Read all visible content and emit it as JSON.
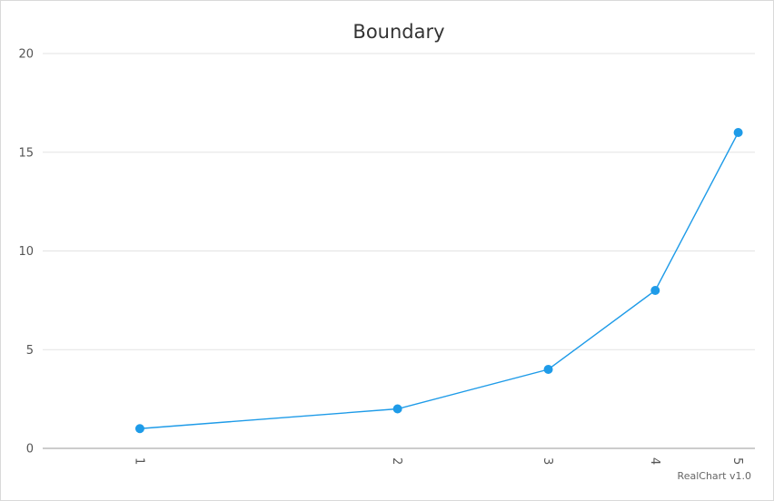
{
  "chart_data": {
    "type": "line",
    "title": "Boundary",
    "xlabel": "",
    "ylabel": "",
    "x": [
      1,
      2,
      3,
      4,
      5
    ],
    "series": [
      {
        "values": [
          1,
          2,
          4,
          8,
          16
        ]
      }
    ],
    "xlim": [
      0.77,
      5.23
    ],
    "ylim": [
      0,
      20
    ],
    "y_ticks": [
      0,
      5,
      10,
      15,
      20
    ],
    "x_ticks": [
      1,
      2,
      3,
      4,
      5
    ],
    "x_scale": "log",
    "x_tick_label_rotation": "90deg",
    "grid": "horizontal",
    "legend": "none",
    "series_color": "#1e9be8"
  },
  "footer": {
    "credit": "RealChart v1.0"
  }
}
